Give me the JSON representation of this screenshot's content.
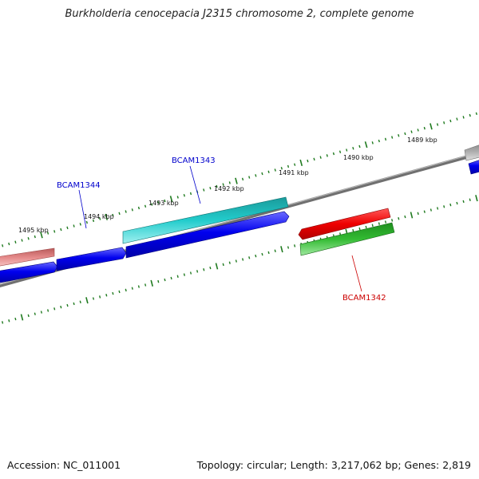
{
  "title": "Burkholderia cenocepacia J2315 chromosome 2, complete genome",
  "footer": {
    "accession": "Accession: NC_011001",
    "summary": "Topology: circular; Length: 3,217,062 bp; Genes: 2,819"
  },
  "ticks": [
    {
      "label": "1489 kbp"
    },
    {
      "label": "1490 kbp"
    },
    {
      "label": "1491 kbp"
    },
    {
      "label": "1492 kbp"
    },
    {
      "label": "1493 kbp"
    },
    {
      "label": "1494 kbp"
    },
    {
      "label": "1495 kbp"
    }
  ],
  "gene_labels": [
    {
      "name": "BCAM1343",
      "color": "#0000cc"
    },
    {
      "name": "BCAM1344",
      "color": "#0000cc"
    },
    {
      "name": "BCAM1342",
      "color": "#cc0000"
    }
  ],
  "colors": {
    "backbone": "#808080",
    "ticks": "#1f7a1f",
    "blue_feature": "#0000ee",
    "cyan_feature": "#22cccc",
    "red_feature": "#ee0000",
    "green_feature": "#33bb33",
    "pink_feature": "#e58a8a",
    "grey_feature": "#b0b0b0"
  }
}
